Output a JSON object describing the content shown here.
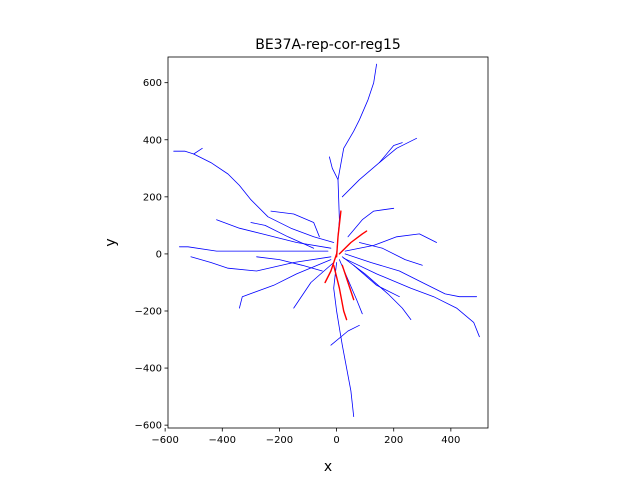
{
  "chart_data": {
    "type": "line",
    "title": "BE37A-rep-cor-reg15",
    "xlabel": "x",
    "ylabel": "y",
    "xlim": [
      -590,
      530
    ],
    "ylim": [
      -610,
      690
    ],
    "xticks": [
      -600,
      -400,
      -200,
      0,
      200,
      400
    ],
    "yticks": [
      -600,
      -400,
      -200,
      0,
      200,
      400,
      600
    ],
    "xtick_labels": [
      "−600",
      "−400",
      "−200",
      "0",
      "200",
      "400"
    ],
    "ytick_labels": [
      "−600",
      "−400",
      "−200",
      "0",
      "200",
      "400",
      "600"
    ],
    "grid": false,
    "series": [
      {
        "color": "#0000ff",
        "paths": [
          [
            [
              0,
              0
            ],
            [
              10,
              120
            ],
            [
              5,
              260
            ],
            [
              25,
              370
            ],
            [
              60,
              430
            ],
            [
              80,
              470
            ],
            [
              110,
              540
            ],
            [
              130,
              600
            ],
            [
              140,
              665
            ]
          ],
          [
            [
              5,
              260
            ],
            [
              -15,
              300
            ],
            [
              -25,
              340
            ]
          ],
          [
            [
              20,
              200
            ],
            [
              80,
              260
            ],
            [
              150,
              320
            ],
            [
              210,
              370
            ],
            [
              280,
              405
            ]
          ],
          [
            [
              150,
              320
            ],
            [
              200,
              380
            ],
            [
              230,
              390
            ]
          ],
          [
            [
              -10,
              40
            ],
            [
              -80,
              60
            ],
            [
              -160,
              90
            ],
            [
              -240,
              130
            ],
            [
              -300,
              190
            ],
            [
              -340,
              240
            ],
            [
              -380,
              280
            ],
            [
              -440,
              320
            ],
            [
              -500,
              350
            ],
            [
              -530,
              360
            ],
            [
              -570,
              360
            ]
          ],
          [
            [
              -500,
              350
            ],
            [
              -470,
              370
            ]
          ],
          [
            [
              -20,
              20
            ],
            [
              -140,
              40
            ],
            [
              -260,
              70
            ],
            [
              -340,
              90
            ],
            [
              -420,
              120
            ]
          ],
          [
            [
              -30,
              10
            ],
            [
              -160,
              10
            ],
            [
              -300,
              10
            ],
            [
              -420,
              10
            ],
            [
              -520,
              25
            ],
            [
              -550,
              25
            ]
          ],
          [
            [
              -20,
              -10
            ],
            [
              -150,
              -30
            ],
            [
              -280,
              -60
            ],
            [
              -380,
              -50
            ],
            [
              -440,
              -30
            ],
            [
              -510,
              -10
            ]
          ],
          [
            [
              -20,
              -20
            ],
            [
              -140,
              -70
            ],
            [
              -220,
              -110
            ],
            [
              -330,
              -150
            ],
            [
              -340,
              -190
            ]
          ],
          [
            [
              -10,
              -30
            ],
            [
              -90,
              -100
            ],
            [
              -130,
              -160
            ],
            [
              -150,
              -190
            ]
          ],
          [
            [
              10,
              -20
            ],
            [
              40,
              -90
            ],
            [
              70,
              -160
            ],
            [
              90,
              -210
            ]
          ],
          [
            [
              20,
              -10
            ],
            [
              100,
              -70
            ],
            [
              180,
              -140
            ],
            [
              230,
              -190
            ],
            [
              260,
              -230
            ]
          ],
          [
            [
              30,
              0
            ],
            [
              120,
              -30
            ],
            [
              220,
              -60
            ],
            [
              300,
              -100
            ],
            [
              380,
              -140
            ],
            [
              430,
              -150
            ],
            [
              490,
              -150
            ]
          ],
          [
            [
              30,
              10
            ],
            [
              130,
              30
            ],
            [
              210,
              60
            ],
            [
              290,
              70
            ],
            [
              350,
              40
            ]
          ],
          [
            [
              25,
              -15
            ],
            [
              140,
              -70
            ],
            [
              260,
              -120
            ],
            [
              340,
              -150
            ],
            [
              420,
              -190
            ],
            [
              480,
              -240
            ],
            [
              500,
              -290
            ]
          ],
          [
            [
              0,
              -30
            ],
            [
              -10,
              -120
            ],
            [
              0,
              -200
            ],
            [
              10,
              -260
            ],
            [
              20,
              -320
            ],
            [
              35,
              -400
            ],
            [
              50,
              -480
            ],
            [
              60,
              -570
            ]
          ],
          [
            [
              -20,
              -320
            ],
            [
              40,
              -270
            ],
            [
              80,
              -250
            ]
          ],
          [
            [
              -60,
              60
            ],
            [
              -80,
              110
            ],
            [
              -150,
              140
            ],
            [
              -230,
              150
            ]
          ],
          [
            [
              40,
              60
            ],
            [
              90,
              120
            ],
            [
              130,
              150
            ],
            [
              200,
              160
            ]
          ],
          [
            [
              -50,
              -60
            ],
            [
              -120,
              -40
            ],
            [
              -200,
              -20
            ],
            [
              -280,
              -10
            ]
          ],
          [
            [
              60,
              -40
            ],
            [
              140,
              -110
            ],
            [
              220,
              -150
            ]
          ],
          [
            [
              -80,
              20
            ],
            [
              -170,
              60
            ],
            [
              -250,
              100
            ],
            [
              -300,
              110
            ]
          ],
          [
            [
              80,
              40
            ],
            [
              160,
              20
            ],
            [
              240,
              -20
            ],
            [
              300,
              -40
            ]
          ]
        ]
      },
      {
        "color": "#ff0000",
        "paths": [
          [
            [
              0,
              -10
            ],
            [
              5,
              60
            ],
            [
              15,
              150
            ]
          ],
          [
            [
              0,
              0
            ],
            [
              -20,
              -60
            ],
            [
              -40,
              -100
            ]
          ],
          [
            [
              10,
              0
            ],
            [
              50,
              40
            ],
            [
              90,
              70
            ],
            [
              105,
              80
            ]
          ],
          [
            [
              20,
              -40
            ],
            [
              40,
              -100
            ],
            [
              60,
              -160
            ]
          ],
          [
            [
              -10,
              -40
            ],
            [
              10,
              -120
            ],
            [
              25,
              -200
            ],
            [
              35,
              -230
            ]
          ]
        ]
      }
    ]
  }
}
